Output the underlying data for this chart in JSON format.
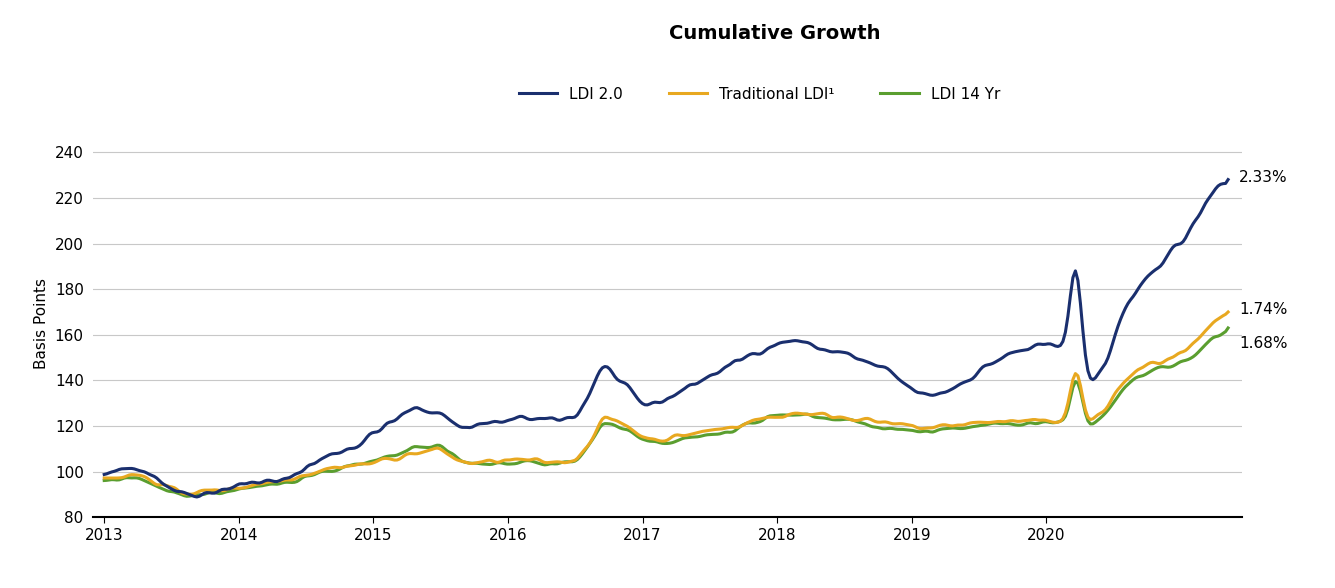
{
  "title": "Cumulative Growth",
  "ylabel": "Basis Points",
  "ylim": [
    80,
    250
  ],
  "yticks": [
    80,
    100,
    120,
    140,
    160,
    180,
    200,
    220,
    240
  ],
  "xlim_start": 2012.92,
  "xlim_end": 2021.45,
  "xtick_years": [
    2013,
    2014,
    2015,
    2016,
    2017,
    2018,
    2019,
    2020
  ],
  "colors": {
    "ldi20": "#1a2f6e",
    "traditional": "#e8a820",
    "ldi14": "#5a9e2f"
  },
  "labels": {
    "ldi20": "LDI 2.0",
    "traditional": "Traditional LDI¹",
    "ldi14": "LDI 14 Yr"
  },
  "annotations": {
    "ldi20": "2.33%",
    "traditional": "1.74%",
    "ldi14": "1.68%"
  },
  "background_color": "#ffffff",
  "grid_color": "#c8c8c8",
  "title_fontsize": 14,
  "label_fontsize": 11,
  "tick_fontsize": 11,
  "legend_fontsize": 11,
  "annotation_fontsize": 11,
  "line_width": 2.2
}
